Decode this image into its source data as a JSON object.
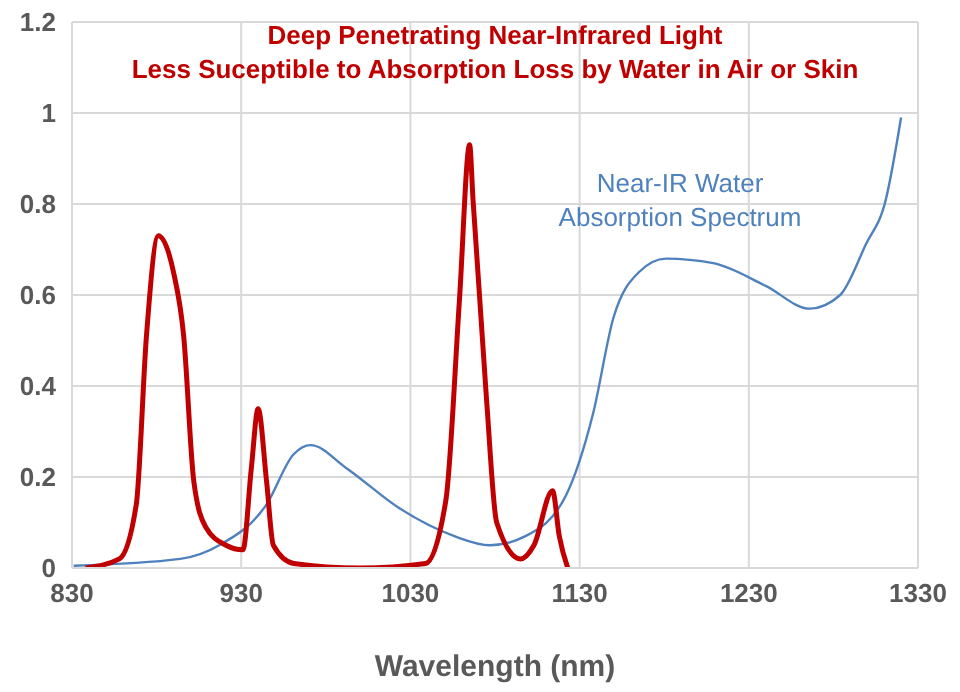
{
  "chart_data": {
    "type": "line",
    "title": "Deep Penetrating Near-Infrared Light",
    "subtitle": "Less Suceptible to Absorption Loss by Water in Air or Skin",
    "xlabel": "Wavelength (nm)",
    "series": [
      {
        "name": "Near-IR Water Absorption Spectrum",
        "color": "#4f81bd",
        "x": [
          831,
          894,
          917,
          945,
          961,
          971,
          992,
          1024,
          1056,
          1077,
          1098,
          1122,
          1138,
          1150,
          1165,
          1181,
          1209,
          1240,
          1266,
          1284,
          1299,
          1311,
          1320
        ],
        "values": [
          0.005,
          0.02,
          0.05,
          0.14,
          0.25,
          0.27,
          0.22,
          0.13,
          0.07,
          0.05,
          0.07,
          0.16,
          0.34,
          0.55,
          0.65,
          0.68,
          0.67,
          0.62,
          0.57,
          0.6,
          0.71,
          0.81,
          0.99
        ]
      },
      {
        "color": "#c00000",
        "x": [
          838,
          858,
          868,
          874,
          881,
          890,
          896,
          902,
          909,
          921,
          931,
          936,
          940,
          945,
          949,
          961,
          1000,
          1039,
          1051,
          1059,
          1065,
          1067,
          1075,
          1081,
          1095,
          1103,
          1114,
          1118,
          1123
        ],
        "values": [
          0,
          0.02,
          0.14,
          0.51,
          0.73,
          0.65,
          0.51,
          0.19,
          0.09,
          0.05,
          0.04,
          0.22,
          0.35,
          0.19,
          0.05,
          0.01,
          0,
          0.01,
          0.15,
          0.59,
          0.93,
          0.81,
          0.37,
          0.1,
          0.02,
          0.05,
          0.17,
          0.07,
          0
        ]
      }
    ],
    "xlim": [
      830,
      1330
    ],
    "xticks": [
      830,
      930,
      1030,
      1130,
      1230,
      1330
    ],
    "ylim": [
      0,
      1.2
    ],
    "yticks": [
      0,
      0.2,
      0.4,
      0.6,
      0.8,
      1,
      1.2
    ],
    "grid": true,
    "legend": false,
    "marker": "none",
    "line_style": "solid"
  }
}
